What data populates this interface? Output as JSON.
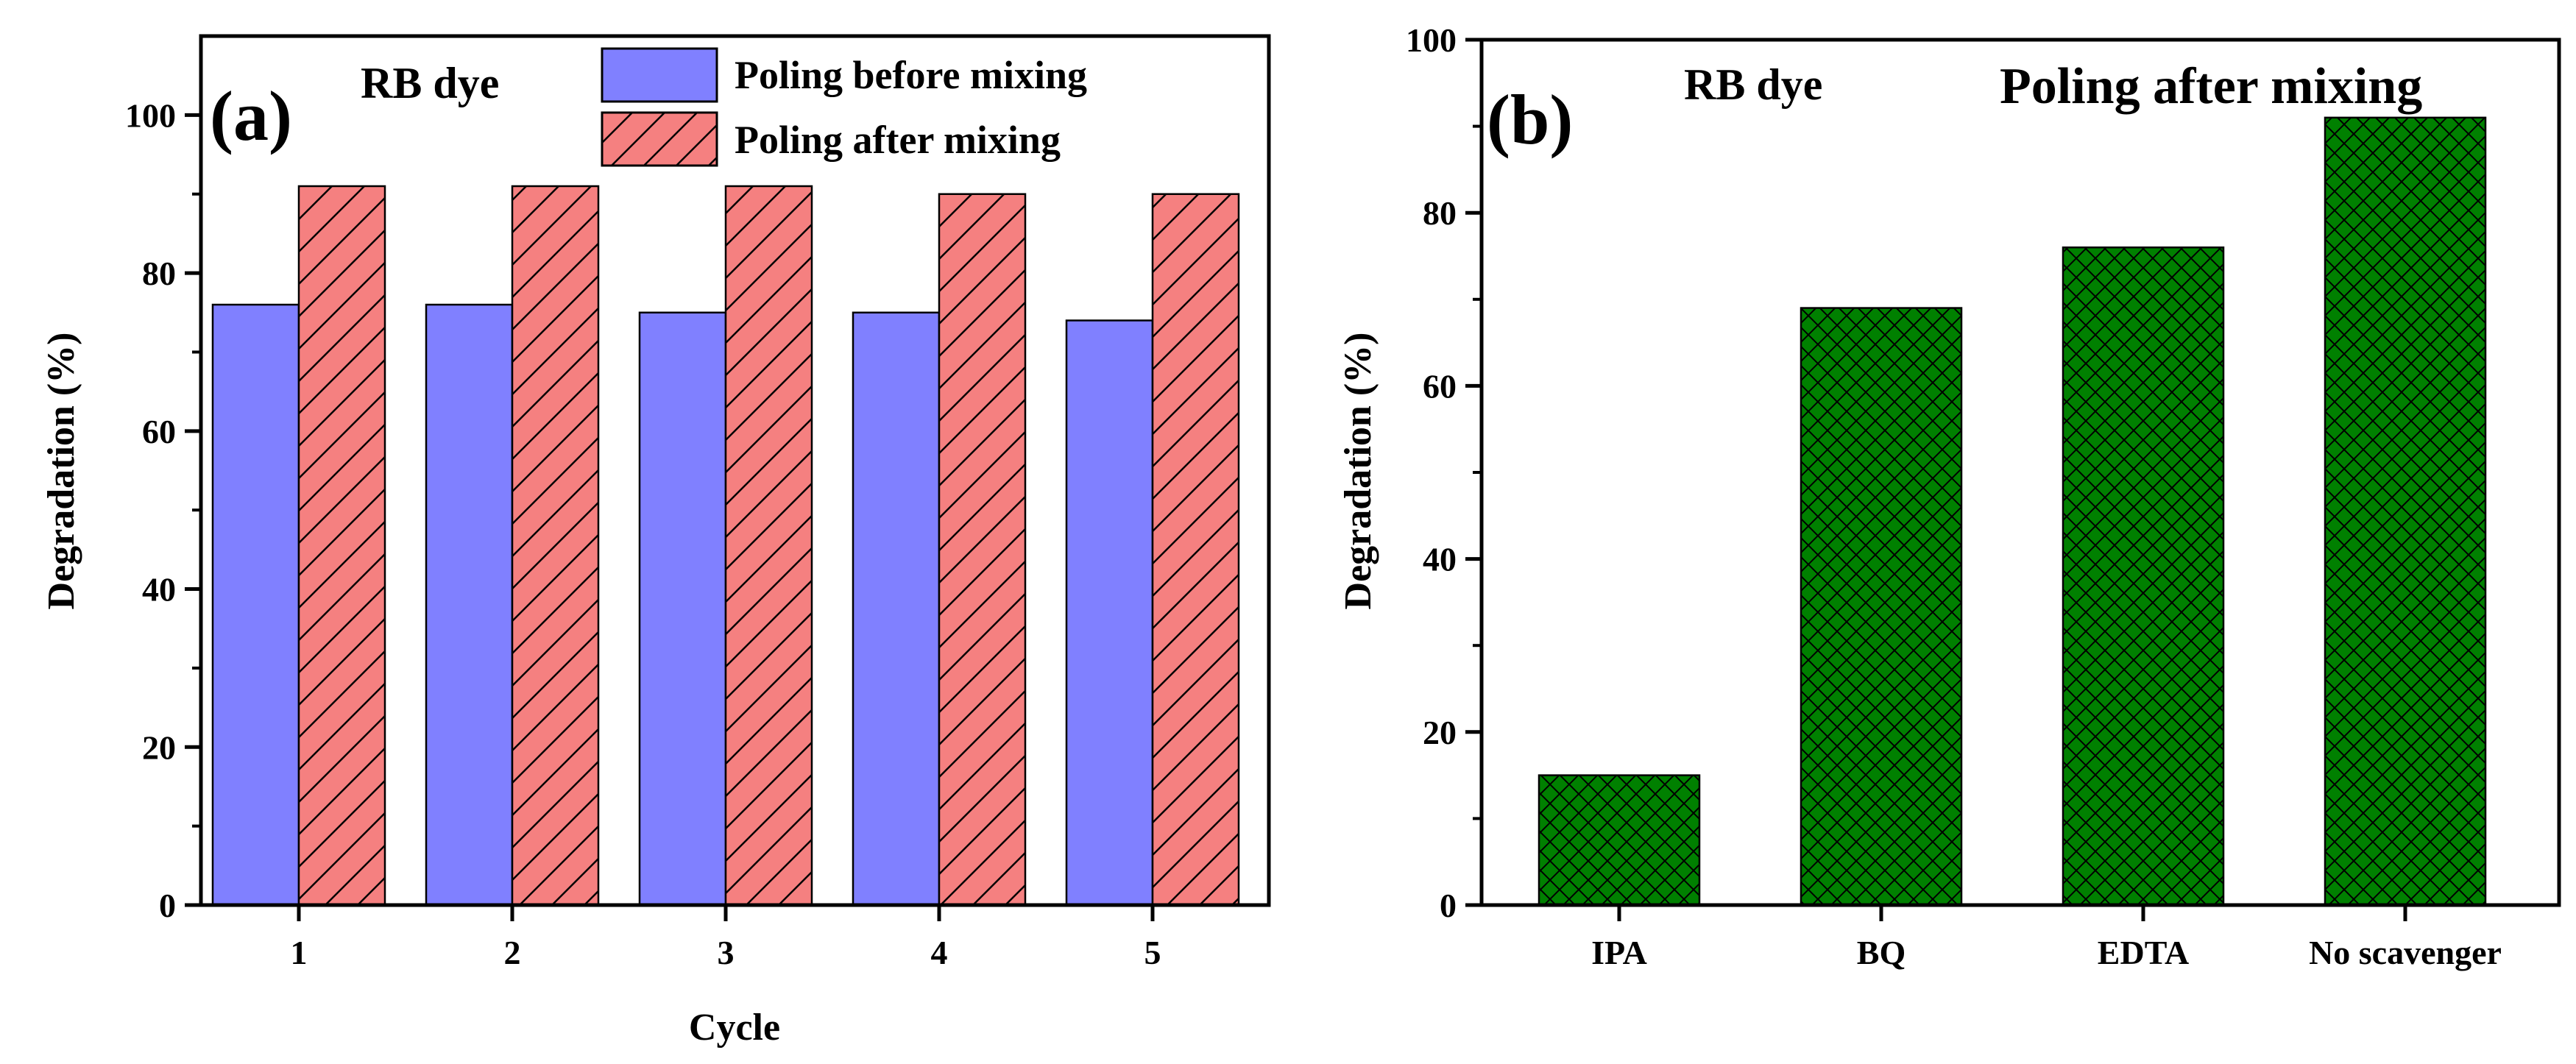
{
  "chart_data": [
    {
      "type": "bar",
      "panel_label": "(a)",
      "annotation": "RB dye",
      "categories": [
        "1",
        "2",
        "3",
        "4",
        "5"
      ],
      "series": [
        {
          "name": "Poling before mixing",
          "values": [
            76,
            76,
            75,
            75,
            74
          ],
          "color": "#8080ff",
          "pattern": "solid"
        },
        {
          "name": "Poling after mixing",
          "values": [
            91,
            91,
            91,
            90,
            90
          ],
          "color": "#f58080",
          "pattern": "diagonal-hatch"
        }
      ],
      "xlabel": "Cycle",
      "ylabel": "Degradation (%)",
      "ylim": [
        0,
        110
      ],
      "yticks": [
        "0",
        "20",
        "40",
        "60",
        "80",
        "100"
      ],
      "legend_position": "top-right",
      "grid": false
    },
    {
      "type": "bar",
      "panel_label": "(b)",
      "annotations": [
        "RB dye",
        "Poling after mixing"
      ],
      "categories": [
        "IPA",
        "BQ",
        "EDTA",
        "No scavenger"
      ],
      "values": [
        15,
        69,
        76,
        91
      ],
      "color": "#008000",
      "pattern": "cross-hatch",
      "xlabel": "",
      "ylabel": "Degradation (%)",
      "ylim": [
        0,
        100
      ],
      "yticks": [
        "0",
        "20",
        "40",
        "60",
        "80",
        "100"
      ],
      "grid": false
    }
  ]
}
